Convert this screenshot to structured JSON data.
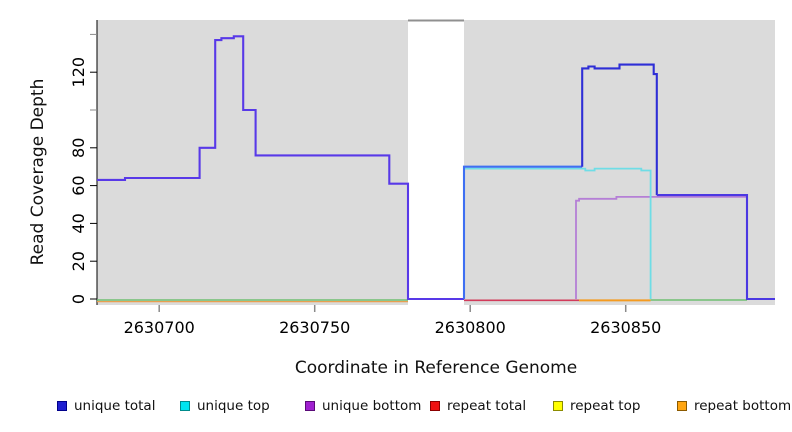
{
  "figure": {
    "xlabel": "Coordinate in Reference Genome",
    "ylabel": "Read Coverage Depth",
    "background": "#ffffff",
    "panel_color": "#dbdbdb",
    "gap_band_color": "#ffffff",
    "gap_top_line_color": "#909090",
    "axis_color": "#000000",
    "minor_tick_color": "#8a8a8a",
    "x_tick_color": "#8a8a8a",
    "tick_label_color": "#000000"
  },
  "chart_data": {
    "type": "line",
    "subtype": "step-coverage",
    "title": "",
    "xlabel": "Coordinate in Reference Genome",
    "ylabel": "Read Coverage Depth",
    "xlim": [
      2630680,
      2630898
    ],
    "ylim": [
      0,
      150
    ],
    "x_ticks": [
      2630700,
      2630750,
      2630800,
      2630850
    ],
    "y_ticks_labeled": [
      0,
      20,
      40,
      60,
      80,
      120
    ],
    "y_ticks_unlabeled": [
      100,
      140
    ],
    "grid": false,
    "legend_position": "bottom",
    "gap_region": {
      "start": 2630780,
      "end": 2630798
    },
    "series": [
      {
        "name": "unique total",
        "legend_fill": "#1f1fd0",
        "legend_border": "#00008b",
        "draw_segments": [
          {
            "color": "#5839e8",
            "steps": [
              [
                2630680,
                63
              ],
              [
                2630689,
                64
              ],
              [
                2630713,
                80
              ],
              [
                2630718,
                137
              ],
              [
                2630720,
                138
              ],
              [
                2630724,
                139
              ],
              [
                2630727,
                100
              ],
              [
                2630731,
                76
              ],
              [
                2630774,
                61
              ],
              [
                2630780,
                0
              ]
            ],
            "end": 2630798
          },
          {
            "color": "#3e6ff2",
            "steps": [
              [
                2630798,
                0
              ],
              [
                2630798,
                70
              ]
            ],
            "end": 2630836
          },
          {
            "color": "#2e2ed6",
            "steps": [
              [
                2630836,
                70
              ],
              [
                2630836,
                122
              ],
              [
                2630838,
                123
              ],
              [
                2630840,
                122
              ],
              [
                2630848,
                124
              ],
              [
                2630859,
                119
              ],
              [
                2630860,
                55
              ]
            ],
            "end": 2630860
          },
          {
            "color": "#4b38e2",
            "steps": [
              [
                2630860,
                55
              ],
              [
                2630889,
                0
              ]
            ],
            "end": 2630898
          }
        ]
      },
      {
        "name": "unique top",
        "legend_fill": "#00e5f0",
        "legend_border": "#008b8b",
        "line_color": "#6fdde6",
        "steps": [
          [
            2630798,
            0
          ],
          [
            2630798,
            69
          ],
          [
            2630837,
            68
          ],
          [
            2630840,
            69
          ],
          [
            2630855,
            68
          ],
          [
            2630858,
            0
          ]
        ],
        "end": 2630858
      },
      {
        "name": "unique bottom",
        "legend_fill": "#a020d0",
        "legend_border": "#5a0a78",
        "line_color": "#b57fd6",
        "steps": [
          [
            2630834,
            0
          ],
          [
            2630834,
            52
          ],
          [
            2630835,
            53
          ],
          [
            2630847,
            54
          ]
        ],
        "end": 2630889
      },
      {
        "name": "repeat total",
        "legend_fill": "#ee1111",
        "legend_border": "#8b0000",
        "line_color": "#d23b5a",
        "steps": [
          [
            2630798,
            0
          ]
        ],
        "end": 2630835,
        "note": "zero coverage; visible as red baseline 2630798-2630835"
      },
      {
        "name": "repeat top",
        "legend_fill": "#ffff00",
        "legend_border": "#8b8b00",
        "line_color": "#e8d24a",
        "steps": [
          [
            2630680,
            0
          ]
        ],
        "end": 2630898,
        "note": "zero coverage throughout"
      },
      {
        "name": "repeat bottom",
        "legend_fill": "#ffa510",
        "legend_border": "#8b5a00",
        "line_color": "#f49b20",
        "steps": [
          [
            2630835,
            0
          ]
        ],
        "end": 2630858,
        "note": "zero coverage; visible as orange baseline 2630835-2630858"
      }
    ],
    "baseline_segments": [
      {
        "from": 2630680,
        "to": 2630780,
        "color": "#e8a050",
        "dy": 1.6,
        "w": 1.2
      },
      {
        "from": 2630680,
        "to": 2630780,
        "color": "#6fbf73",
        "dy": 0,
        "w": 1.6
      },
      {
        "from": 2630798,
        "to": 2630835,
        "color": "#d23b5a",
        "dy": 0.3,
        "w": 1.6
      },
      {
        "from": 2630835,
        "to": 2630858,
        "color": "#f49b20",
        "dy": 0.4,
        "w": 2.0
      },
      {
        "from": 2630858,
        "to": 2630889,
        "color": "#6fbf73",
        "dy": 0,
        "w": 1.6
      }
    ]
  },
  "legend": {
    "items": [
      {
        "label": "unique total",
        "fill": "#1f1fd0",
        "border": "#00008b"
      },
      {
        "label": "unique top",
        "fill": "#00e5f0",
        "border": "#008b8b"
      },
      {
        "label": "unique bottom",
        "fill": "#a020d0",
        "border": "#5a0a78"
      },
      {
        "label": "repeat total",
        "fill": "#ee1111",
        "border": "#8b0000"
      },
      {
        "label": "repeat top",
        "fill": "#ffff00",
        "border": "#8b8b00"
      },
      {
        "label": "repeat bottom",
        "fill": "#ffa510",
        "border": "#8b5a00"
      }
    ]
  }
}
